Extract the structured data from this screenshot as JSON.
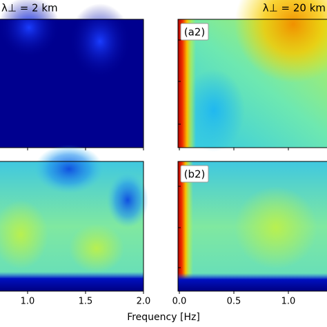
{
  "chart_data": [
    {
      "type": "heatmap",
      "title": "λ⊥ = 2 km",
      "xlim": [
        0,
        2
      ],
      "xticks": [
        {
          "value": 1,
          "label": "1.0"
        },
        {
          "value": 1.5,
          "label": "1.5"
        },
        {
          "value": 2,
          "label": "2.0"
        }
      ]
    },
    {
      "type": "heatmap",
      "title": "λ⊥ = 20 km",
      "panel_labels": [
        "(a2)",
        "(b2)"
      ],
      "xlim": [
        0,
        2
      ],
      "xticks": [
        {
          "value": 0,
          "label": "0.0"
        },
        {
          "value": 0.5,
          "label": "0.5"
        },
        {
          "value": 1,
          "label": "1.0"
        }
      ]
    }
  ],
  "figure": {
    "xlabel": "Frequency [Hz]"
  }
}
